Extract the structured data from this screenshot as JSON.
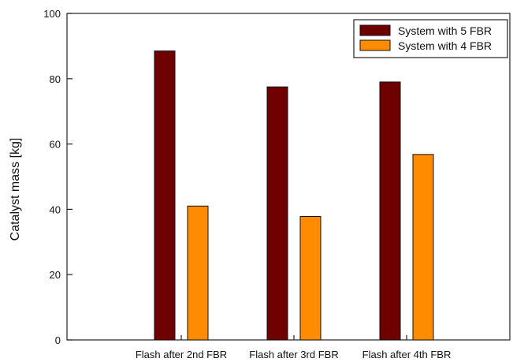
{
  "chart_data": {
    "type": "bar",
    "categories": [
      "Flash after 2nd FBR",
      "Flash after 3rd FBR",
      "Flash after 4th FBR"
    ],
    "series": [
      {
        "name": "System with 5 FBR",
        "values": [
          88.5,
          77.5,
          79
        ],
        "color": "#6e0000"
      },
      {
        "name": "System with 4 FBR",
        "values": [
          41,
          37.8,
          56.8
        ],
        "color": "#ff8c00"
      }
    ],
    "title": "",
    "xlabel": "",
    "ylabel": "Catalyst mass [kg]",
    "ylim": [
      0,
      100
    ],
    "yticks": [
      0,
      20,
      40,
      60,
      80,
      100
    ],
    "grid": false,
    "legend_position": "top-right"
  }
}
